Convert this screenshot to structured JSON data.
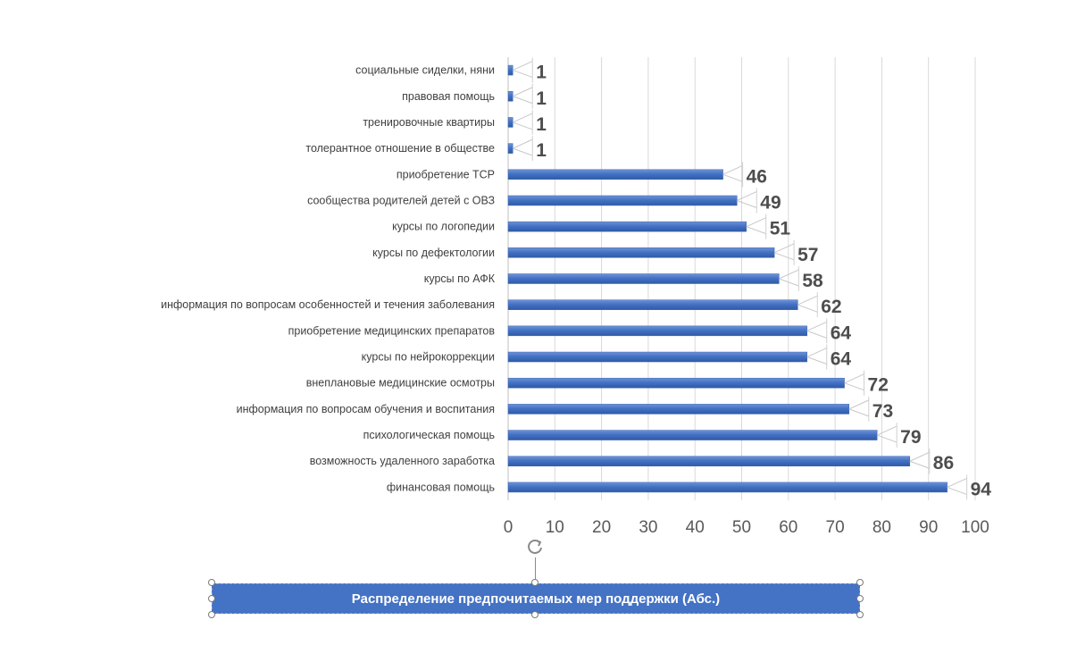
{
  "chart_data": {
    "type": "bar",
    "orientation": "horizontal",
    "title": "Распределение предпочитаемых мер поддержки (Абс.)",
    "categories": [
      "социальные сиделки, няни",
      "правовая помощь",
      "тренировочные квартиры",
      "толерантное отношение в обществе",
      "приобретение ТСР",
      "сообщества родителей детей с ОВЗ",
      "курсы по логопедии",
      "курсы по дефектологии",
      "курсы по АФК",
      "информация по вопросам особенностей и течения заболевания",
      "приобретение медицинских препаратов",
      "курсы по нейрокоррекции",
      "внеплановые медицинские осмотры",
      "информация по вопросам обучения и воспитания",
      "психологическая помощь",
      "возможность удаленного заработка",
      "финансовая помощь"
    ],
    "values": [
      1,
      1,
      1,
      1,
      46,
      49,
      51,
      57,
      58,
      62,
      64,
      64,
      72,
      73,
      79,
      86,
      94
    ],
    "xlim": [
      0,
      100
    ],
    "xticks": [
      0,
      10,
      20,
      30,
      40,
      50,
      60,
      70,
      80,
      90,
      100
    ],
    "grid": "vertical",
    "legend": "none",
    "bar_color": "#4472c4"
  },
  "title_box": {
    "text": "Распределение предпочитаемых мер поддержки (Абс.)"
  }
}
